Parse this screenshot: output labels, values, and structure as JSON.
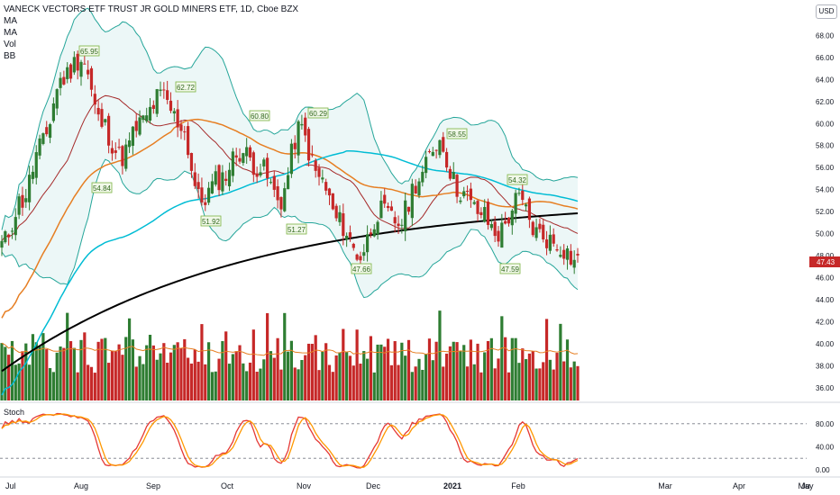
{
  "legend": {
    "title": "VANECK VECTORS ETF TRUST JR GOLD MINERS ETF, 1D, Cboe BZX",
    "indicators": [
      "MA",
      "MA",
      "Vol",
      "BB"
    ]
  },
  "currency_label": "USD",
  "stoch_label": "Stoch",
  "colors": {
    "up": "#26a69a",
    "up_candle": "#2e7d32",
    "down": "#c62828",
    "bb": "#26a69a",
    "ma_fast": "#e67e22",
    "ma_mid": "#00bcd4",
    "ma_slow": "#000000",
    "ma_20": "#a52a2a",
    "stoch_k": "#e53935",
    "stoch_d": "#ff9800",
    "price_tag": "#c62828"
  },
  "chart_data": {
    "type": "candlestick",
    "title": "VANECK VECTORS ETF TRUST JR GOLD MINERS ETF, 1D, Cboe BZX",
    "price_axis": {
      "range": [
        35,
        70
      ],
      "ticks": [
        "36.00",
        "38.00",
        "40.00",
        "42.00",
        "44.00",
        "46.00",
        "48.00",
        "50.00",
        "52.00",
        "54.00",
        "56.00",
        "58.00",
        "60.00",
        "62.00",
        "64.00",
        "66.00",
        "68.00"
      ]
    },
    "x_axis_labels": [
      "Jul",
      "Aug",
      "Sep",
      "Oct",
      "Nov",
      "Dec",
      "2021",
      "Feb",
      "Mar",
      "Apr",
      "May",
      "Ju"
    ],
    "last_price": "47.43",
    "close_path": [
      [
        "Jul",
        49.0
      ],
      [
        "Jul",
        53.0
      ],
      [
        "Aug",
        58.0
      ],
      [
        "Aug",
        64.0
      ],
      [
        "Aug",
        66.0
      ],
      [
        "Aug",
        60.0
      ],
      [
        "Sep",
        57.0
      ],
      [
        "Sep",
        60.0
      ],
      [
        "Sep",
        62.5
      ],
      [
        "Sep",
        60.0
      ],
      [
        "Oct",
        53.0
      ],
      [
        "Oct",
        55.0
      ],
      [
        "Oct",
        57.5
      ],
      [
        "Oct",
        56.0
      ],
      [
        "Nov",
        53.0
      ],
      [
        "Nov",
        59.5
      ],
      [
        "Nov",
        55.0
      ],
      [
        "Nov",
        51.0
      ],
      [
        "Dec",
        48.0
      ],
      [
        "Dec",
        52.0
      ],
      [
        "Dec",
        51.0
      ],
      [
        "Dec",
        55.0
      ],
      [
        "2021",
        58.5
      ],
      [
        "2021",
        54.0
      ],
      [
        "2021",
        52.0
      ],
      [
        "2021",
        50.0
      ],
      [
        "Feb",
        53.0
      ],
      [
        "Feb",
        50.0
      ],
      [
        "Feb",
        49.0
      ],
      [
        "Feb",
        47.43
      ]
    ],
    "annotations": [
      {
        "label": "65.95",
        "type": "high",
        "date": "Aug"
      },
      {
        "label": "54.84",
        "type": "low",
        "date": "Aug"
      },
      {
        "label": "62.72",
        "type": "high",
        "date": "Sep"
      },
      {
        "label": "51.92",
        "type": "low",
        "date": "Sep"
      },
      {
        "label": "60.80",
        "type": "high",
        "date": "Oct"
      },
      {
        "label": "60.29",
        "type": "high",
        "date": "Nov"
      },
      {
        "label": "51.27",
        "type": "low",
        "date": "Nov"
      },
      {
        "label": "47.66",
        "type": "low",
        "date": "Dec"
      },
      {
        "label": "58.55",
        "type": "high",
        "date": "2021"
      },
      {
        "label": "54.32",
        "type": "high",
        "date": "Feb"
      },
      {
        "label": "47.59",
        "type": "low",
        "date": "Feb"
      }
    ],
    "stoch_axis": {
      "range": [
        0,
        100
      ],
      "ticks": [
        "0.00",
        "40.00",
        "80.00"
      ],
      "bands": [
        20,
        80
      ]
    },
    "grid": false
  }
}
